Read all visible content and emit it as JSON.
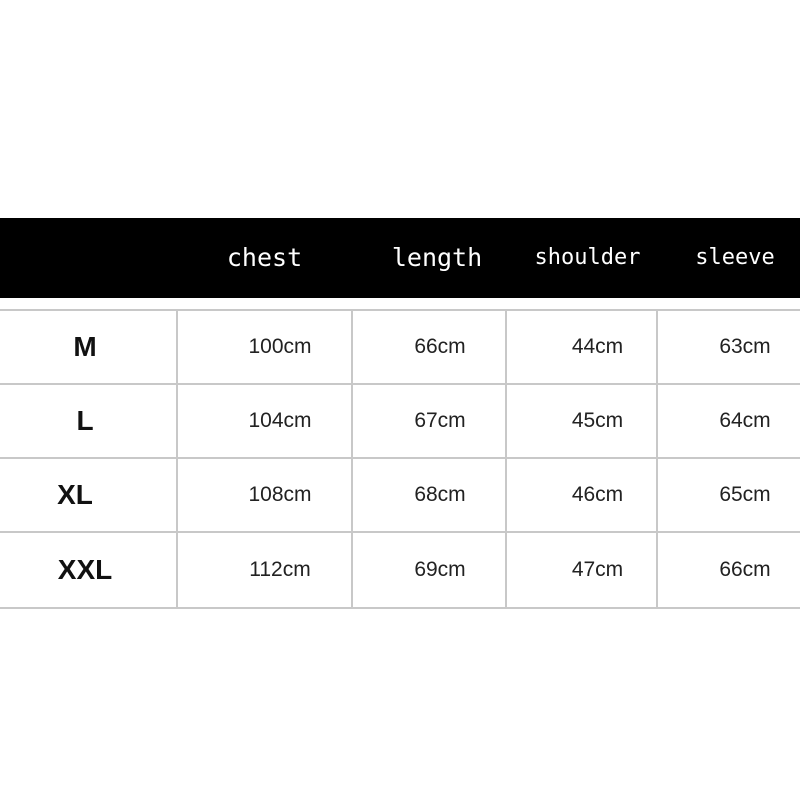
{
  "headers": [
    "",
    "chest",
    "length",
    "shoulder",
    "sleeve"
  ],
  "rows": [
    {
      "size": "M",
      "chest": "100cm",
      "length": "66cm",
      "shoulder": "44cm",
      "sleeve": "63cm"
    },
    {
      "size": "L",
      "chest": "104cm",
      "length": "67cm",
      "shoulder": "45cm",
      "sleeve": "64cm"
    },
    {
      "size": "XL",
      "chest": "108cm",
      "length": "68cm",
      "shoulder": "46cm",
      "sleeve": "65cm"
    },
    {
      "size": "XXL",
      "chest": "112cm",
      "length": "69cm",
      "shoulder": "47cm",
      "sleeve": "66cm"
    }
  ]
}
